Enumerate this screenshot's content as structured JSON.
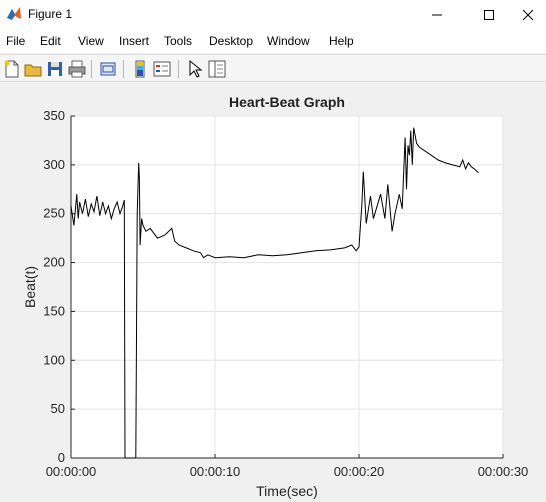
{
  "window": {
    "title": "Figure 1",
    "controls": [
      "minimize",
      "maximize",
      "close"
    ]
  },
  "menu": {
    "items": [
      "File",
      "Edit",
      "View",
      "Insert",
      "Tools",
      "Desktop",
      "Window",
      "Help"
    ]
  },
  "toolbar": {
    "buttons": [
      "new-figure-icon",
      "open-file-icon",
      "save-icon",
      "print-icon",
      "link-plot-icon",
      "colorbar-icon",
      "legend-icon",
      "pointer-icon",
      "plot-tools-icon"
    ]
  },
  "chart_data": {
    "type": "line",
    "title": "Heart-Beat Graph",
    "xlabel": "Time(sec)",
    "ylabel": "Beat(t)",
    "xlim": [
      0,
      30
    ],
    "ylim": [
      0,
      350
    ],
    "grid": true,
    "line_color": "#000000",
    "x_ticks": [
      0,
      10,
      20,
      30
    ],
    "x_tick_labels": [
      "00:00:00",
      "00:00:10",
      "00:00:20",
      "00:00:30"
    ],
    "y_ticks": [
      0,
      50,
      100,
      150,
      200,
      250,
      300,
      350
    ],
    "y_tick_labels": [
      "0",
      "50",
      "100",
      "150",
      "200",
      "250",
      "300",
      "350"
    ],
    "x": [
      0,
      0.2,
      0.4,
      0.5,
      0.6,
      0.8,
      1.0,
      1.2,
      1.4,
      1.6,
      1.8,
      2.0,
      2.2,
      2.4,
      2.6,
      2.8,
      3.0,
      3.2,
      3.4,
      3.6,
      3.7,
      3.75,
      4.5,
      4.6,
      4.7,
      4.75,
      4.8,
      4.9,
      5.0,
      5.2,
      5.5,
      6.0,
      6.5,
      7.0,
      7.2,
      7.5,
      8.0,
      8.5,
      9.0,
      9.2,
      9.5,
      10.0,
      11.0,
      12.0,
      13.0,
      14.0,
      15.0,
      16.0,
      17.0,
      18.0,
      19.0,
      19.5,
      19.8,
      20.0,
      20.2,
      20.3,
      20.5,
      20.8,
      21.0,
      21.2,
      21.5,
      21.8,
      22.0,
      22.3,
      22.5,
      22.8,
      23.0,
      23.2,
      23.3,
      23.4,
      23.5,
      23.6,
      23.7,
      23.8,
      24.0,
      24.2,
      24.5,
      25.0,
      25.5,
      26.0,
      26.5,
      27.0,
      27.2,
      27.4,
      27.6,
      27.8,
      28.0,
      28.3
    ],
    "y": [
      258,
      238,
      270,
      245,
      262,
      250,
      265,
      247,
      260,
      252,
      268,
      248,
      262,
      250,
      258,
      245,
      255,
      262,
      250,
      258,
      264,
      0,
      0,
      250,
      302,
      285,
      218,
      245,
      238,
      232,
      235,
      225,
      228,
      235,
      222,
      218,
      215,
      212,
      210,
      205,
      208,
      205,
      206,
      205,
      208,
      207,
      208,
      210,
      212,
      213,
      215,
      218,
      212,
      216,
      260,
      293,
      240,
      268,
      245,
      255,
      270,
      245,
      280,
      232,
      250,
      270,
      255,
      328,
      275,
      320,
      310,
      335,
      300,
      338,
      322,
      318,
      315,
      310,
      305,
      302,
      300,
      298,
      305,
      296,
      302,
      298,
      296,
      292
    ]
  }
}
